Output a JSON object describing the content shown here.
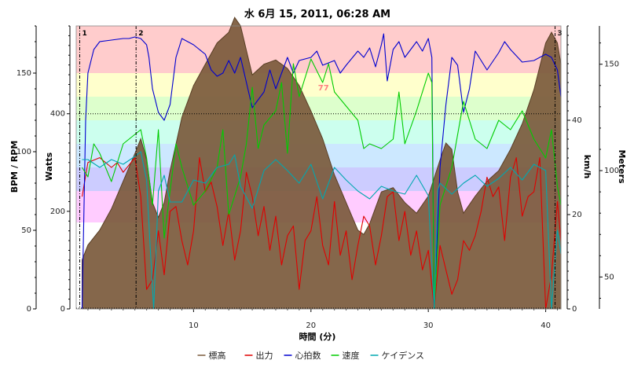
{
  "chart_data": {
    "type": "line",
    "title": "水 6月 15, 2011, 06:28 AM",
    "xlabel": "時間 (分)",
    "xlim": [
      0,
      41.3
    ],
    "x_ticks": [
      10,
      20,
      30,
      40
    ],
    "axes": {
      "bpm_rpm": {
        "label": "BPM / RPM",
        "ticks": [
          0,
          50,
          100,
          150
        ],
        "range": [
          0,
          180
        ]
      },
      "watts": {
        "label": "Watts",
        "ticks": [
          0,
          200,
          400
        ],
        "range": [
          0,
          580
        ]
      },
      "speed": {
        "label": "km/h",
        "ticks": [
          0,
          20,
          40
        ],
        "range": [
          0,
          60
        ]
      },
      "elevation": {
        "label": "Meters",
        "ticks": [
          50,
          100,
          150
        ],
        "range": [
          35,
          168
        ]
      }
    },
    "zones": [
      {
        "from": 0,
        "to": 55,
        "color": "#ffffff"
      },
      {
        "from": 55,
        "to": 75,
        "color": "#ffccff"
      },
      {
        "from": 75,
        "to": 90,
        "color": "#ccccff"
      },
      {
        "from": 90,
        "to": 105,
        "color": "#cce8ff"
      },
      {
        "from": 105,
        "to": 120,
        "color": "#ccffee"
      },
      {
        "from": 120,
        "to": 135,
        "color": "#ddffcc"
      },
      {
        "from": 135,
        "to": 150,
        "color": "#ffffcc"
      },
      {
        "from": 150,
        "to": 180,
        "color": "#ffcccc"
      }
    ],
    "markers": [
      {
        "label": "1",
        "x": 0.3
      },
      {
        "label": "2",
        "x": 5.1
      },
      {
        "label": "3",
        "x": 40.8
      }
    ],
    "annotation": {
      "text": "77",
      "x": 20.6,
      "y": 125
    },
    "reference_line": {
      "axis": "watts",
      "value": 400
    },
    "legend": [
      "標高",
      "出力",
      "心拍数",
      "速度",
      "ケイデンス"
    ],
    "colors": {
      "標高": "#7b5a3c",
      "出力": "#e00000",
      "心拍数": "#0000d0",
      "速度": "#00cc00",
      "ケイデンス": "#00a8b0"
    },
    "series": [
      {
        "name": "標高",
        "axis": "elevation",
        "x": [
          0.5,
          1,
          2,
          3,
          4,
          5,
          5.5,
          6,
          6.5,
          7,
          7.5,
          8,
          9,
          10,
          11,
          12,
          13,
          13.5,
          14,
          15,
          16,
          17,
          18,
          19,
          20,
          21,
          22,
          23,
          24,
          24.5,
          25,
          26,
          27,
          28,
          29,
          30,
          31,
          31.5,
          32,
          32.5,
          33,
          34,
          35,
          36,
          37,
          38,
          39,
          40,
          40.5,
          41,
          41.3
        ],
        "values": [
          58,
          65,
          72,
          82,
          95,
          108,
          115,
          105,
          85,
          78,
          85,
          100,
          125,
          140,
          150,
          160,
          165,
          172,
          168,
          145,
          150,
          152,
          148,
          140,
          128,
          115,
          98,
          85,
          72,
          70,
          75,
          90,
          92,
          85,
          80,
          88,
          105,
          113,
          110,
          90,
          80,
          88,
          95,
          100,
          110,
          122,
          138,
          160,
          165,
          160,
          150
        ]
      },
      {
        "name": "出力",
        "axis": "watts",
        "x": [
          0.5,
          1,
          2,
          3,
          3.5,
          4,
          5,
          5.5,
          6,
          6.5,
          7,
          7.5,
          8,
          8.5,
          9,
          9.5,
          10,
          10.5,
          11,
          11.5,
          12,
          12.5,
          13,
          13.5,
          14,
          14.5,
          15,
          15.5,
          16,
          16.5,
          17,
          17.5,
          18,
          18.5,
          19,
          19.5,
          20,
          20.5,
          21,
          21.5,
          22,
          22.5,
          23,
          23.5,
          24,
          24.5,
          25,
          25.5,
          26,
          26.5,
          27,
          27.5,
          28,
          28.5,
          29,
          29.5,
          30,
          30.5,
          31,
          31.5,
          32,
          32.5,
          33,
          33.5,
          34,
          34.5,
          35,
          35.5,
          36,
          36.5,
          37,
          37.5,
          38,
          38.5,
          39,
          39.5,
          40,
          40.5,
          41,
          41.3
        ],
        "values": [
          230,
          300,
          310,
          290,
          300,
          280,
          310,
          230,
          40,
          60,
          160,
          70,
          200,
          210,
          140,
          90,
          160,
          310,
          240,
          260,
          210,
          130,
          200,
          100,
          160,
          280,
          230,
          150,
          210,
          120,
          190,
          90,
          150,
          170,
          40,
          140,
          160,
          230,
          130,
          90,
          220,
          110,
          160,
          60,
          130,
          190,
          170,
          90,
          150,
          230,
          240,
          140,
          200,
          110,
          160,
          80,
          120,
          0,
          130,
          80,
          30,
          60,
          140,
          120,
          150,
          200,
          270,
          230,
          250,
          140,
          270,
          310,
          190,
          230,
          240,
          310,
          0,
          70,
          220,
          140
        ]
      },
      {
        "name": "心拍数",
        "axis": "bpm_rpm",
        "x": [
          0.5,
          0.8,
          1,
          1.5,
          2,
          3,
          4,
          4.5,
          5,
          5.5,
          6,
          6.2,
          6.5,
          7,
          7.5,
          8,
          8.5,
          9,
          10,
          11,
          11.5,
          12,
          12.5,
          13,
          13.5,
          14,
          15,
          16,
          16.5,
          17,
          18,
          18.5,
          19,
          20,
          20.5,
          21,
          22,
          22.5,
          23,
          24,
          24.5,
          25,
          25.5,
          26,
          26.2,
          26.5,
          27,
          27.5,
          28,
          29,
          29.5,
          30,
          30.3,
          30.5,
          31,
          31.5,
          32,
          32.5,
          33,
          33.5,
          34,
          35,
          36,
          36.5,
          37,
          38,
          39,
          40,
          40.5,
          41,
          41.3
        ],
        "values": [
          0,
          120,
          150,
          165,
          170,
          171,
          172,
          172,
          173,
          172,
          168,
          160,
          140,
          125,
          120,
          130,
          160,
          172,
          168,
          162,
          152,
          148,
          150,
          158,
          150,
          160,
          128,
          138,
          152,
          140,
          160,
          150,
          158,
          160,
          164,
          155,
          158,
          150,
          155,
          164,
          160,
          166,
          154,
          168,
          175,
          145,
          165,
          170,
          160,
          170,
          164,
          172,
          160,
          0,
          90,
          130,
          160,
          155,
          125,
          140,
          164,
          152,
          163,
          170,
          165,
          157,
          158,
          162,
          160,
          152,
          135
        ]
      },
      {
        "name": "速度",
        "axis": "speed",
        "x": [
          0.5,
          1,
          1.5,
          2,
          3,
          4,
          5,
          5.5,
          6,
          6.5,
          7,
          7.5,
          8,
          8.5,
          9,
          10,
          11,
          12,
          12.5,
          13,
          14,
          14.5,
          15,
          15.5,
          16,
          17,
          17.5,
          18,
          18.5,
          19,
          20,
          21,
          21.5,
          22,
          23,
          24,
          24.5,
          25,
          26,
          27,
          27.5,
          28,
          29,
          30,
          30.3,
          30.5,
          31,
          32,
          33,
          34,
          35,
          36,
          37,
          38,
          39,
          40,
          40.5,
          41,
          41.3
        ],
        "values": [
          30,
          28,
          35,
          33,
          27,
          35,
          37,
          38,
          32,
          22,
          38,
          15,
          25,
          35,
          30,
          22,
          25,
          30,
          38,
          20,
          28,
          35,
          47,
          34,
          39,
          42,
          48,
          33,
          52,
          45,
          53,
          48,
          52,
          46,
          43,
          40,
          34,
          35,
          34,
          36,
          46,
          35,
          42,
          50,
          48,
          0,
          22,
          30,
          44,
          36,
          34,
          40,
          38,
          42,
          36,
          32,
          38,
          26,
          22
        ]
      },
      {
        "name": "ケイデンス",
        "axis": "bpm_rpm",
        "x": [
          0.5,
          1,
          2,
          3,
          4,
          5,
          5.5,
          6,
          6.3,
          6.6,
          7,
          7.5,
          8,
          9,
          10,
          11,
          12,
          13,
          13.5,
          14,
          15,
          16,
          17,
          18,
          19,
          20,
          21,
          22,
          23,
          24,
          25,
          26,
          27,
          28,
          29,
          30,
          30.5,
          30.8,
          31,
          32,
          33,
          34,
          35,
          36,
          37,
          38,
          39,
          40,
          40.5,
          41,
          41.3
        ],
        "values": [
          95,
          95,
          90,
          95,
          92,
          97,
          100,
          82,
          40,
          0,
          75,
          85,
          68,
          68,
          82,
          80,
          90,
          92,
          98,
          78,
          64,
          88,
          95,
          88,
          80,
          92,
          70,
          90,
          82,
          75,
          70,
          78,
          75,
          73,
          85,
          72,
          0,
          75,
          80,
          73,
          80,
          85,
          78,
          83,
          90,
          82,
          92,
          88,
          0,
          50,
          35
        ]
      }
    ]
  }
}
